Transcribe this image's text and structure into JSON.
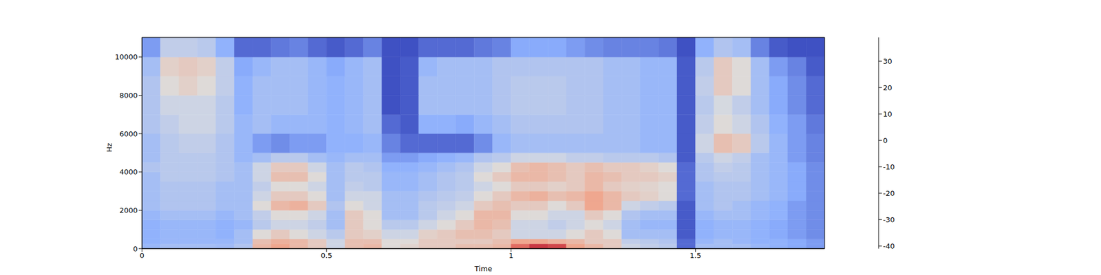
{
  "chart_data": {
    "type": "heatmap",
    "x_label": "Time",
    "y_label": "Hz",
    "xlim": [
      0,
      1.85
    ],
    "xticks": [
      0,
      0.5,
      1,
      1.5
    ],
    "ylim": [
      0,
      11025
    ],
    "yticks": [
      0,
      2000,
      4000,
      6000,
      8000,
      10000
    ],
    "x_edges": [
      0,
      0.05,
      0.1,
      0.15,
      0.2,
      0.25,
      0.3,
      0.35,
      0.4,
      0.45,
      0.5,
      0.55,
      0.6,
      0.65,
      0.7,
      0.75,
      0.8,
      0.85,
      0.9,
      0.95,
      1,
      1.05,
      1.1,
      1.15,
      1.2,
      1.25,
      1.3,
      1.35,
      1.4,
      1.45,
      1.5,
      1.55,
      1.6,
      1.65,
      1.7,
      1.75,
      1.8,
      1.85
    ],
    "y_edges": [
      0,
      250,
      500,
      1000,
      1500,
      2000,
      2500,
      3000,
      3500,
      4000,
      4500,
      5000,
      6000,
      7000,
      8000,
      9000,
      10000,
      11025
    ],
    "cells": [
      [
        -18,
        -15,
        -15,
        -15,
        -16,
        -12,
        10,
        15,
        10,
        5,
        -5,
        8,
        10,
        0,
        2,
        5,
        5,
        8,
        8,
        10,
        25,
        32,
        30,
        15,
        10,
        5,
        -5,
        -8,
        -10,
        -35,
        -15,
        -15,
        -15,
        -18,
        -20,
        -22,
        -25
      ],
      [
        -20,
        -18,
        -18,
        -18,
        -18,
        -15,
        8,
        12,
        10,
        5,
        -5,
        8,
        8,
        0,
        0,
        5,
        5,
        5,
        5,
        8,
        15,
        15,
        12,
        10,
        5,
        5,
        -8,
        -10,
        -12,
        -35,
        -18,
        -15,
        -18,
        -20,
        -20,
        -22,
        -25
      ],
      [
        -20,
        -18,
        -18,
        -18,
        -20,
        -15,
        0,
        5,
        0,
        -5,
        -10,
        5,
        3,
        -5,
        -5,
        3,
        5,
        8,
        8,
        5,
        -5,
        -5,
        -5,
        0,
        5,
        0,
        -15,
        -15,
        -15,
        -38,
        -20,
        -18,
        -18,
        -20,
        -22,
        -25,
        -28
      ],
      [
        -20,
        -18,
        -18,
        -18,
        -20,
        -18,
        -10,
        -5,
        -5,
        -8,
        -15,
        5,
        0,
        -10,
        -10,
        -5,
        0,
        5,
        10,
        8,
        -5,
        -5,
        -8,
        -5,
        0,
        -5,
        -15,
        -18,
        -18,
        -38,
        -20,
        -18,
        -18,
        -20,
        -22,
        -25,
        -28
      ],
      [
        -18,
        -15,
        -15,
        -15,
        -18,
        -15,
        -8,
        0,
        0,
        -5,
        -15,
        5,
        0,
        -15,
        -15,
        -10,
        -5,
        0,
        10,
        10,
        0,
        0,
        -5,
        -5,
        5,
        0,
        -12,
        -15,
        -15,
        -38,
        -18,
        -15,
        -15,
        -18,
        -20,
        -25,
        -28
      ],
      [
        -15,
        -12,
        -12,
        -12,
        -15,
        -15,
        0,
        10,
        12,
        5,
        -12,
        0,
        -5,
        -15,
        -15,
        -10,
        -8,
        -5,
        5,
        8,
        5,
        5,
        0,
        5,
        15,
        10,
        -5,
        -8,
        -10,
        -38,
        -15,
        -12,
        -15,
        -18,
        -20,
        -25,
        -28
      ],
      [
        -15,
        -12,
        -12,
        -12,
        -15,
        -15,
        -5,
        5,
        5,
        0,
        -15,
        -5,
        -5,
        -15,
        -15,
        -12,
        -10,
        -8,
        0,
        5,
        10,
        12,
        8,
        10,
        15,
        10,
        5,
        3,
        0,
        -35,
        -15,
        -12,
        -12,
        -15,
        -18,
        -22,
        -28
      ],
      [
        -15,
        -12,
        -12,
        -12,
        -15,
        -15,
        -8,
        0,
        0,
        -5,
        -15,
        -8,
        -10,
        -18,
        -18,
        -15,
        -12,
        -10,
        -5,
        0,
        5,
        5,
        3,
        5,
        10,
        5,
        3,
        2,
        0,
        -35,
        -15,
        -12,
        -12,
        -15,
        -18,
        -22,
        -28
      ],
      [
        -15,
        -10,
        -10,
        -10,
        -12,
        -15,
        -5,
        8,
        8,
        0,
        -15,
        -10,
        -10,
        -18,
        -18,
        -15,
        -12,
        -10,
        0,
        5,
        10,
        10,
        8,
        5,
        10,
        8,
        5,
        5,
        3,
        -35,
        -12,
        -10,
        -10,
        -15,
        -18,
        -22,
        -28
      ],
      [
        -12,
        -10,
        -10,
        -10,
        -12,
        -15,
        -5,
        5,
        5,
        -5,
        -15,
        -10,
        -12,
        -20,
        -20,
        -18,
        -15,
        -12,
        -5,
        0,
        8,
        10,
        8,
        5,
        8,
        5,
        5,
        3,
        0,
        -35,
        -12,
        -8,
        -10,
        -15,
        -18,
        -22,
        -28
      ],
      [
        -15,
        -10,
        -10,
        -10,
        -12,
        -18,
        -15,
        -10,
        -10,
        -15,
        -18,
        -15,
        -15,
        -25,
        -25,
        -22,
        -20,
        -18,
        -12,
        -10,
        -5,
        -5,
        -5,
        -8,
        -8,
        -10,
        -10,
        -10,
        -12,
        -38,
        -10,
        -5,
        -8,
        -15,
        -18,
        -25,
        -30
      ],
      [
        -15,
        -10,
        -8,
        -8,
        -12,
        -18,
        -25,
        -28,
        -25,
        -25,
        -20,
        -20,
        -18,
        -30,
        -35,
        -35,
        -35,
        -35,
        -28,
        -18,
        -15,
        -15,
        -15,
        -15,
        -15,
        -15,
        -15,
        -18,
        -18,
        -38,
        -5,
        8,
        5,
        -10,
        -18,
        -25,
        -30
      ],
      [
        -12,
        -8,
        -5,
        -5,
        -10,
        -18,
        -15,
        -18,
        -18,
        -18,
        -20,
        -18,
        -15,
        -35,
        -38,
        -20,
        -20,
        -22,
        -18,
        -15,
        -12,
        -12,
        -12,
        -12,
        -12,
        -15,
        -15,
        -18,
        -18,
        -38,
        -8,
        0,
        -5,
        -12,
        -20,
        -25,
        -32
      ],
      [
        -12,
        -5,
        -5,
        -5,
        -10,
        -20,
        -15,
        -15,
        -15,
        -18,
        -20,
        -18,
        -15,
        -40,
        -38,
        -15,
        -15,
        -15,
        -15,
        -12,
        -10,
        -10,
        -10,
        -12,
        -12,
        -15,
        -15,
        -18,
        -18,
        -38,
        -10,
        -3,
        -8,
        -15,
        -22,
        -28,
        -35
      ],
      [
        -12,
        0,
        3,
        0,
        -8,
        -20,
        -15,
        -15,
        -15,
        -18,
        -20,
        -18,
        -15,
        -40,
        -38,
        -15,
        -15,
        -15,
        -15,
        -12,
        -10,
        -10,
        -10,
        -12,
        -12,
        -15,
        -15,
        -18,
        -18,
        -38,
        -8,
        5,
        0,
        -15,
        -22,
        -28,
        -35
      ],
      [
        -15,
        3,
        5,
        3,
        -8,
        -22,
        -18,
        -15,
        -15,
        -18,
        -22,
        -18,
        -15,
        -40,
        -38,
        -18,
        -15,
        -15,
        -15,
        -12,
        -12,
        -12,
        -12,
        -12,
        -12,
        -15,
        -15,
        -18,
        -18,
        -38,
        -10,
        5,
        0,
        -15,
        -25,
        -30,
        -38
      ],
      [
        -25,
        -8,
        -8,
        -10,
        -20,
        -35,
        -35,
        -32,
        -30,
        -35,
        -38,
        -35,
        -30,
        -40,
        -40,
        -35,
        -35,
        -35,
        -32,
        -30,
        -22,
        -22,
        -22,
        -25,
        -28,
        -30,
        -30,
        -30,
        -32,
        -40,
        -20,
        -12,
        -15,
        -30,
        -38,
        -40,
        -40
      ]
    ],
    "colorbar": {
      "lim": [
        -41,
        39
      ],
      "ticks": [
        -40,
        -30,
        -20,
        -10,
        0,
        10,
        20,
        30
      ]
    }
  }
}
